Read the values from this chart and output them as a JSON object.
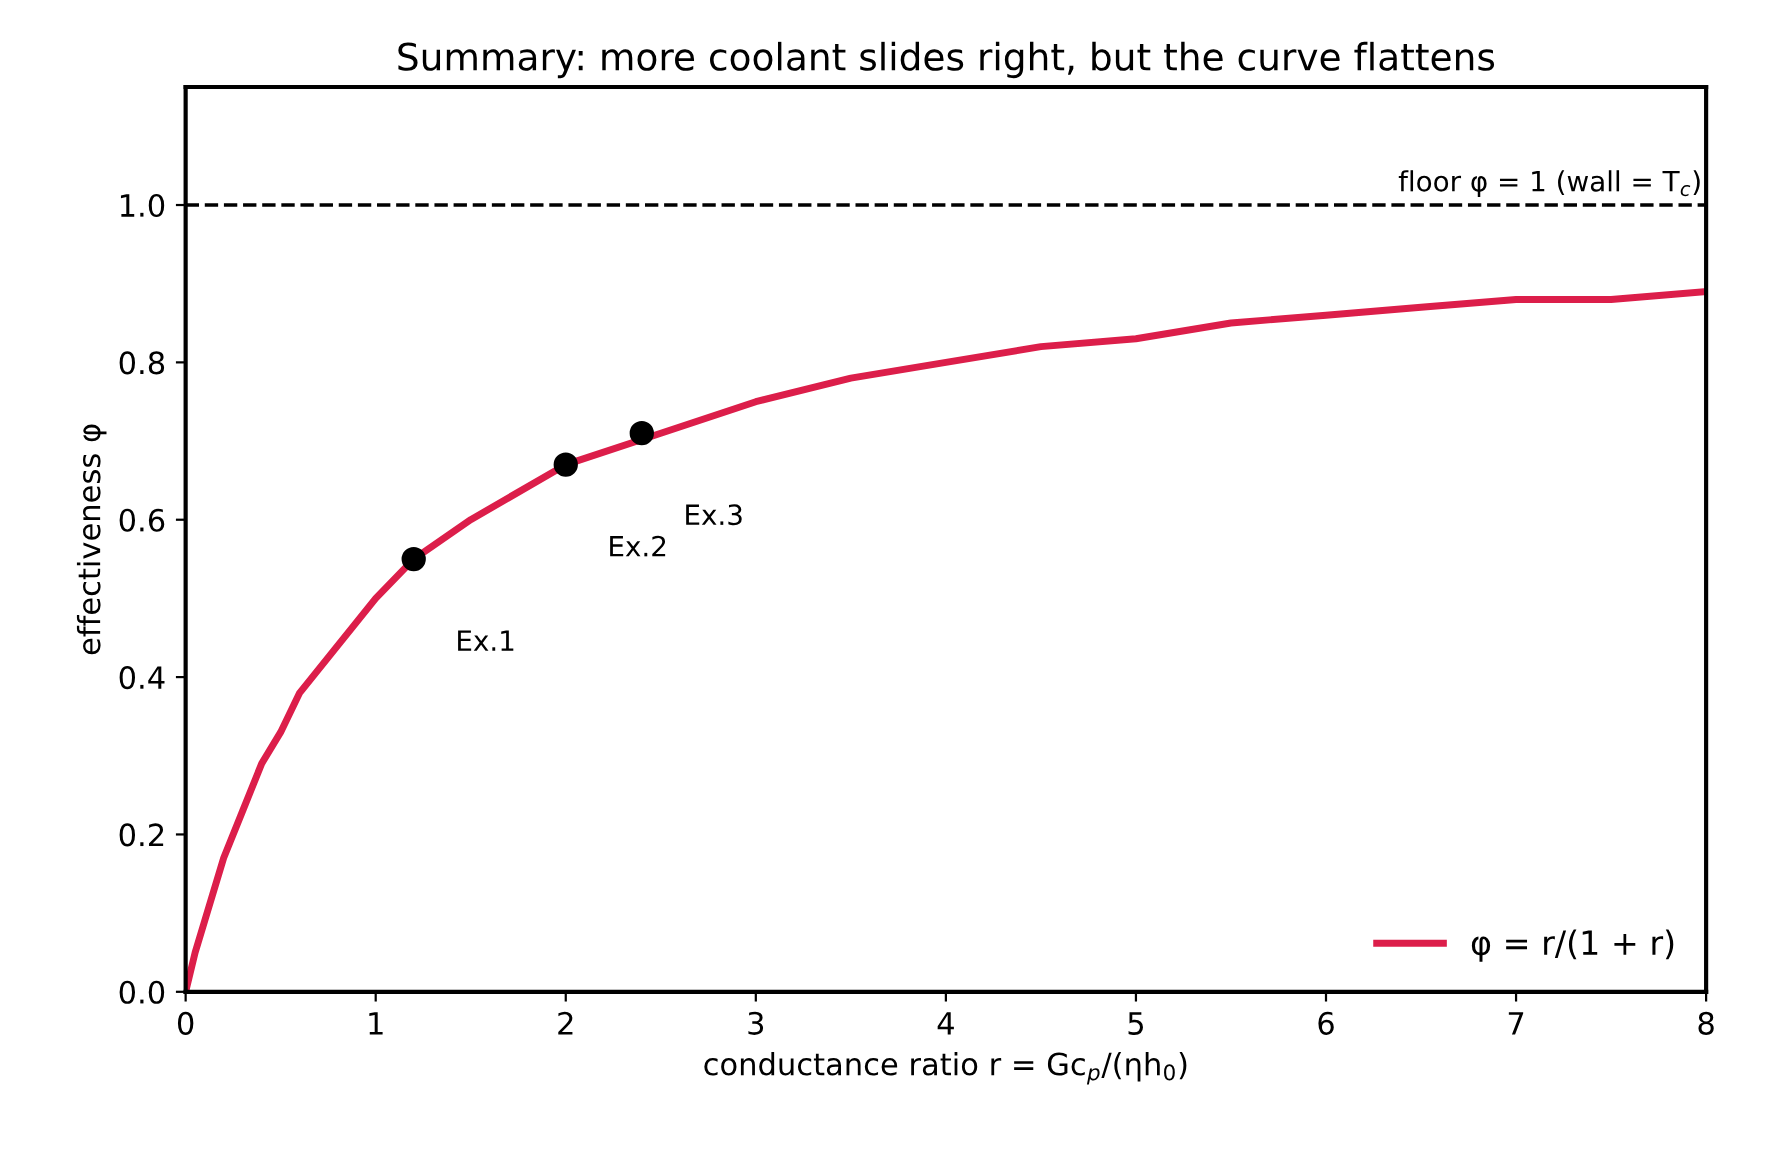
{
  "chart_data": {
    "type": "line",
    "title": "Summary: more coolant slides right, but the curve flattens",
    "xlabel": "conductance ratio r = Gc$_{p}$/(ηh$_{0}$)",
    "ylabel": "effectiveness φ",
    "series": [
      {
        "name": "φ = r/(1 + r)",
        "color": "#dc1e4a",
        "marker": "none",
        "line_style": "solid",
        "x": [
          0,
          0.05,
          0.1,
          0.2,
          0.3,
          0.4,
          0.5,
          0.6,
          0.8,
          1.0,
          1.2,
          1.5,
          2,
          2.5,
          3,
          3.5,
          4,
          4.5,
          5,
          5.5,
          6,
          6.5,
          7,
          7.5,
          8
        ],
        "values": [
          0,
          0.05,
          0.09,
          0.17,
          0.23,
          0.29,
          0.33,
          0.38,
          0.44,
          0.5,
          0.55,
          0.6,
          0.67,
          0.71,
          0.75,
          0.78,
          0.8,
          0.82,
          0.83,
          0.85,
          0.86,
          0.87,
          0.88,
          0.88,
          0.89
        ]
      },
      {
        "type": "scatter",
        "color": "#000000",
        "marker": "circle",
        "x": [
          1.2,
          2.0,
          2.4
        ],
        "values": [
          0.55,
          0.67,
          0.71
        ]
      }
    ],
    "annotations": [
      "Ex.1",
      "Ex.2",
      "Ex.3"
    ],
    "ref_lines": [
      {
        "axis": "y",
        "value": 1.0,
        "label": "floor φ = 1 (wall = T$_{c}$)",
        "color": "#000000",
        "line_style": "dashed"
      }
    ],
    "xlim": [
      0,
      8
    ],
    "xticks": [
      0,
      1,
      2,
      3,
      4,
      5,
      6,
      7,
      8
    ],
    "ylim": [
      0,
      1.15
    ],
    "yticks": [
      {
        "value": 0,
        "label": "0.0"
      },
      {
        "value": 0.2,
        "label": "0.2"
      },
      {
        "value": 0.4,
        "label": "0.4"
      },
      {
        "value": 0.6,
        "label": "0.6"
      },
      {
        "value": 0.8,
        "label": "0.8"
      },
      {
        "value": 1.0,
        "label": "1.0"
      }
    ],
    "grid": false,
    "legend": "bottom right"
  }
}
